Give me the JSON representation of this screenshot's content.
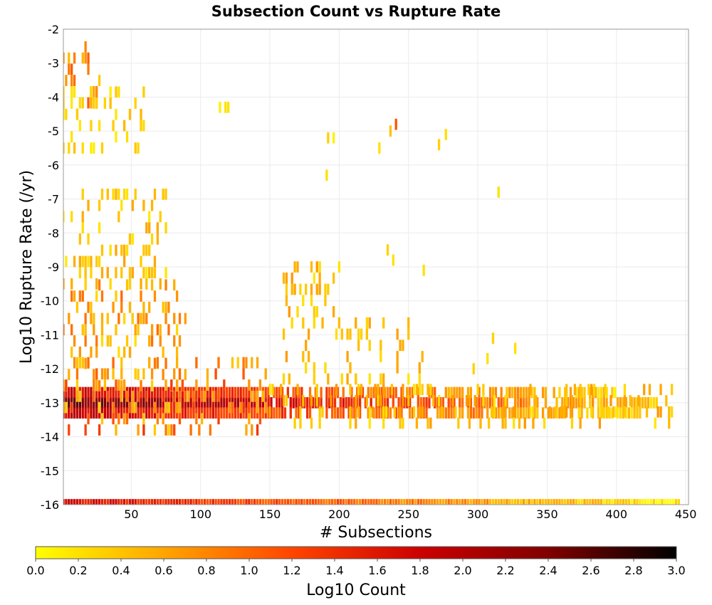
{
  "chart_data": {
    "type": "heatmap",
    "title": "Subsection Count vs Rupture Rate",
    "xlabel": "# Subsections",
    "ylabel": "Log10 Rupture Rate (/yr)",
    "xlim": [
      1,
      452
    ],
    "ylim": [
      -16,
      -2
    ],
    "grid": true,
    "x_ticks": [
      50,
      100,
      150,
      200,
      250,
      300,
      350,
      400,
      450
    ],
    "y_ticks": [
      -2,
      -3,
      -4,
      -5,
      -6,
      -7,
      -8,
      -9,
      -10,
      -11,
      -12,
      -13,
      -14,
      -15,
      -16
    ],
    "x_bin_width": 2,
    "y_bin_height": 0.33,
    "colorbar": {
      "label": "Log10 Count",
      "min": 0.0,
      "max": 3.0,
      "ticks": [
        "0.0",
        "0.2",
        "0.4",
        "0.6",
        "0.8",
        "1.0",
        "1.2",
        "1.4",
        "1.6",
        "1.8",
        "2.0",
        "2.2",
        "2.4",
        "2.6",
        "2.8",
        "3.0"
      ],
      "colors": [
        "#ffff00",
        "#ffa500",
        "#ff4500",
        "#cc0000",
        "#800000",
        "#000000"
      ]
    },
    "bands": [
      {
        "y": -16,
        "x_start": 1,
        "x_end": 445,
        "z_start": 1.7,
        "z_end": 0.15
      },
      {
        "y": -13.0,
        "x_start": 1,
        "x_end": 430,
        "z_start": 2.5,
        "z_end": 0.3
      },
      {
        "y": -12.7,
        "x_start": 1,
        "x_end": 400,
        "z_start": 1.8,
        "z_end": 0.3
      },
      {
        "y": -13.3,
        "x_start": 1,
        "x_end": 420,
        "z_start": 1.8,
        "z_end": 0.3
      }
    ],
    "clusters": [
      {
        "x": [
          1,
          30
        ],
        "y": [
          -4.5,
          -2.2
        ],
        "z": 0.8
      },
      {
        "x": [
          1,
          60
        ],
        "y": [
          -5.5,
          -3.8
        ],
        "z": 0.35
      },
      {
        "x": [
          1,
          75
        ],
        "y": [
          -9.5,
          -6.7
        ],
        "z": 0.45
      },
      {
        "x": [
          1,
          90
        ],
        "y": [
          -12.5,
          -9.5
        ],
        "z": 0.7
      },
      {
        "x": [
          1,
          150
        ],
        "y": [
          -13.8,
          -11.5
        ],
        "z": 1.0
      },
      {
        "x": [
          160,
          200
        ],
        "y": [
          -12.3,
          -8.7
        ],
        "z": 0.5
      },
      {
        "x": [
          200,
          260
        ],
        "y": [
          -12.3,
          -10.5
        ],
        "z": 0.45
      },
      {
        "x": [
          150,
          440
        ],
        "y": [
          -13.6,
          -12.4
        ],
        "z": 0.5
      }
    ],
    "points": [
      {
        "x": 118,
        "y": -4.3,
        "z": 0.2
      },
      {
        "x": 114,
        "y": -4.3,
        "z": 0.1
      },
      {
        "x": 120,
        "y": -4.3,
        "z": 0.2
      },
      {
        "x": 192,
        "y": -5.2,
        "z": 0.3
      },
      {
        "x": 196,
        "y": -5.2,
        "z": 0.1
      },
      {
        "x": 241,
        "y": -4.8,
        "z": 1.1
      },
      {
        "x": 237,
        "y": -5.0,
        "z": 0.4
      },
      {
        "x": 229,
        "y": -5.5,
        "z": 0.2
      },
      {
        "x": 277,
        "y": -5.1,
        "z": 0.2
      },
      {
        "x": 272,
        "y": -5.4,
        "z": 0.3
      },
      {
        "x": 191,
        "y": -6.3,
        "z": 0.2
      },
      {
        "x": 315,
        "y": -6.8,
        "z": 0.2
      },
      {
        "x": 235,
        "y": -8.5,
        "z": 0.3
      },
      {
        "x": 239,
        "y": -8.8,
        "z": 0.2
      },
      {
        "x": 261,
        "y": -9.1,
        "z": 0.2
      },
      {
        "x": 311,
        "y": -11.1,
        "z": 0.3
      },
      {
        "x": 327,
        "y": -11.4,
        "z": 0.2
      },
      {
        "x": 307,
        "y": -11.7,
        "z": 0.2
      },
      {
        "x": 297,
        "y": -12.0,
        "z": 0.3
      }
    ]
  }
}
